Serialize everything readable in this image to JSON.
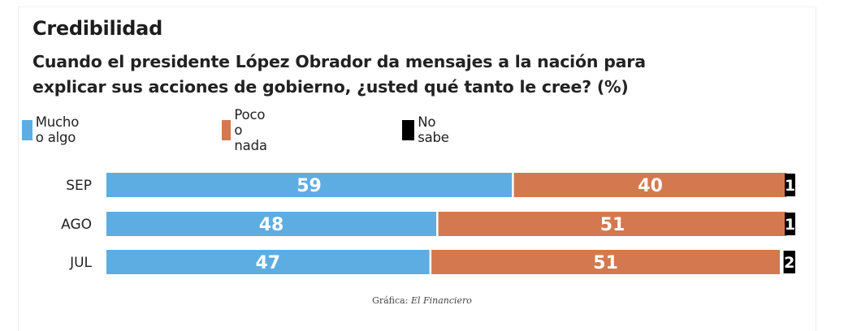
{
  "header": {
    "title": "Credibilidad",
    "subtitle_line1": "Cuando el presidente López Obrador da mensajes a la nación para",
    "subtitle_line2": "explicar sus acciones de gobierno, ¿usted qué tanto le cree? (%)"
  },
  "legend": [
    {
      "label": "Mucho o algo",
      "color": "#5dade2"
    },
    {
      "label": "Poco o nada",
      "color": "#d4784f"
    },
    {
      "label": "No sabe",
      "color": "#000000"
    }
  ],
  "credit": {
    "prefix": "Gráfica:",
    "source": "El Financiero"
  },
  "chart_data": {
    "type": "bar",
    "orientation": "horizontal",
    "stacked": true,
    "title": "Credibilidad",
    "subtitle": "Cuando el presidente López Obrador da mensajes a la nación para explicar sus acciones de gobierno, ¿usted qué tanto le cree? (%)",
    "categories": [
      "SEP",
      "AGO",
      "JUL"
    ],
    "series": [
      {
        "name": "Mucho o algo",
        "color": "#5dade2",
        "values": [
          59,
          48,
          47
        ]
      },
      {
        "name": "Poco o nada",
        "color": "#d4784f",
        "values": [
          40,
          51,
          51
        ]
      },
      {
        "name": "No sabe",
        "color": "#000000",
        "values": [
          1,
          1,
          2
        ]
      }
    ],
    "xlabel": "",
    "ylabel": "",
    "xlim": [
      0,
      100
    ],
    "grid": false,
    "legend_position": "top-left",
    "data_labels": true
  }
}
